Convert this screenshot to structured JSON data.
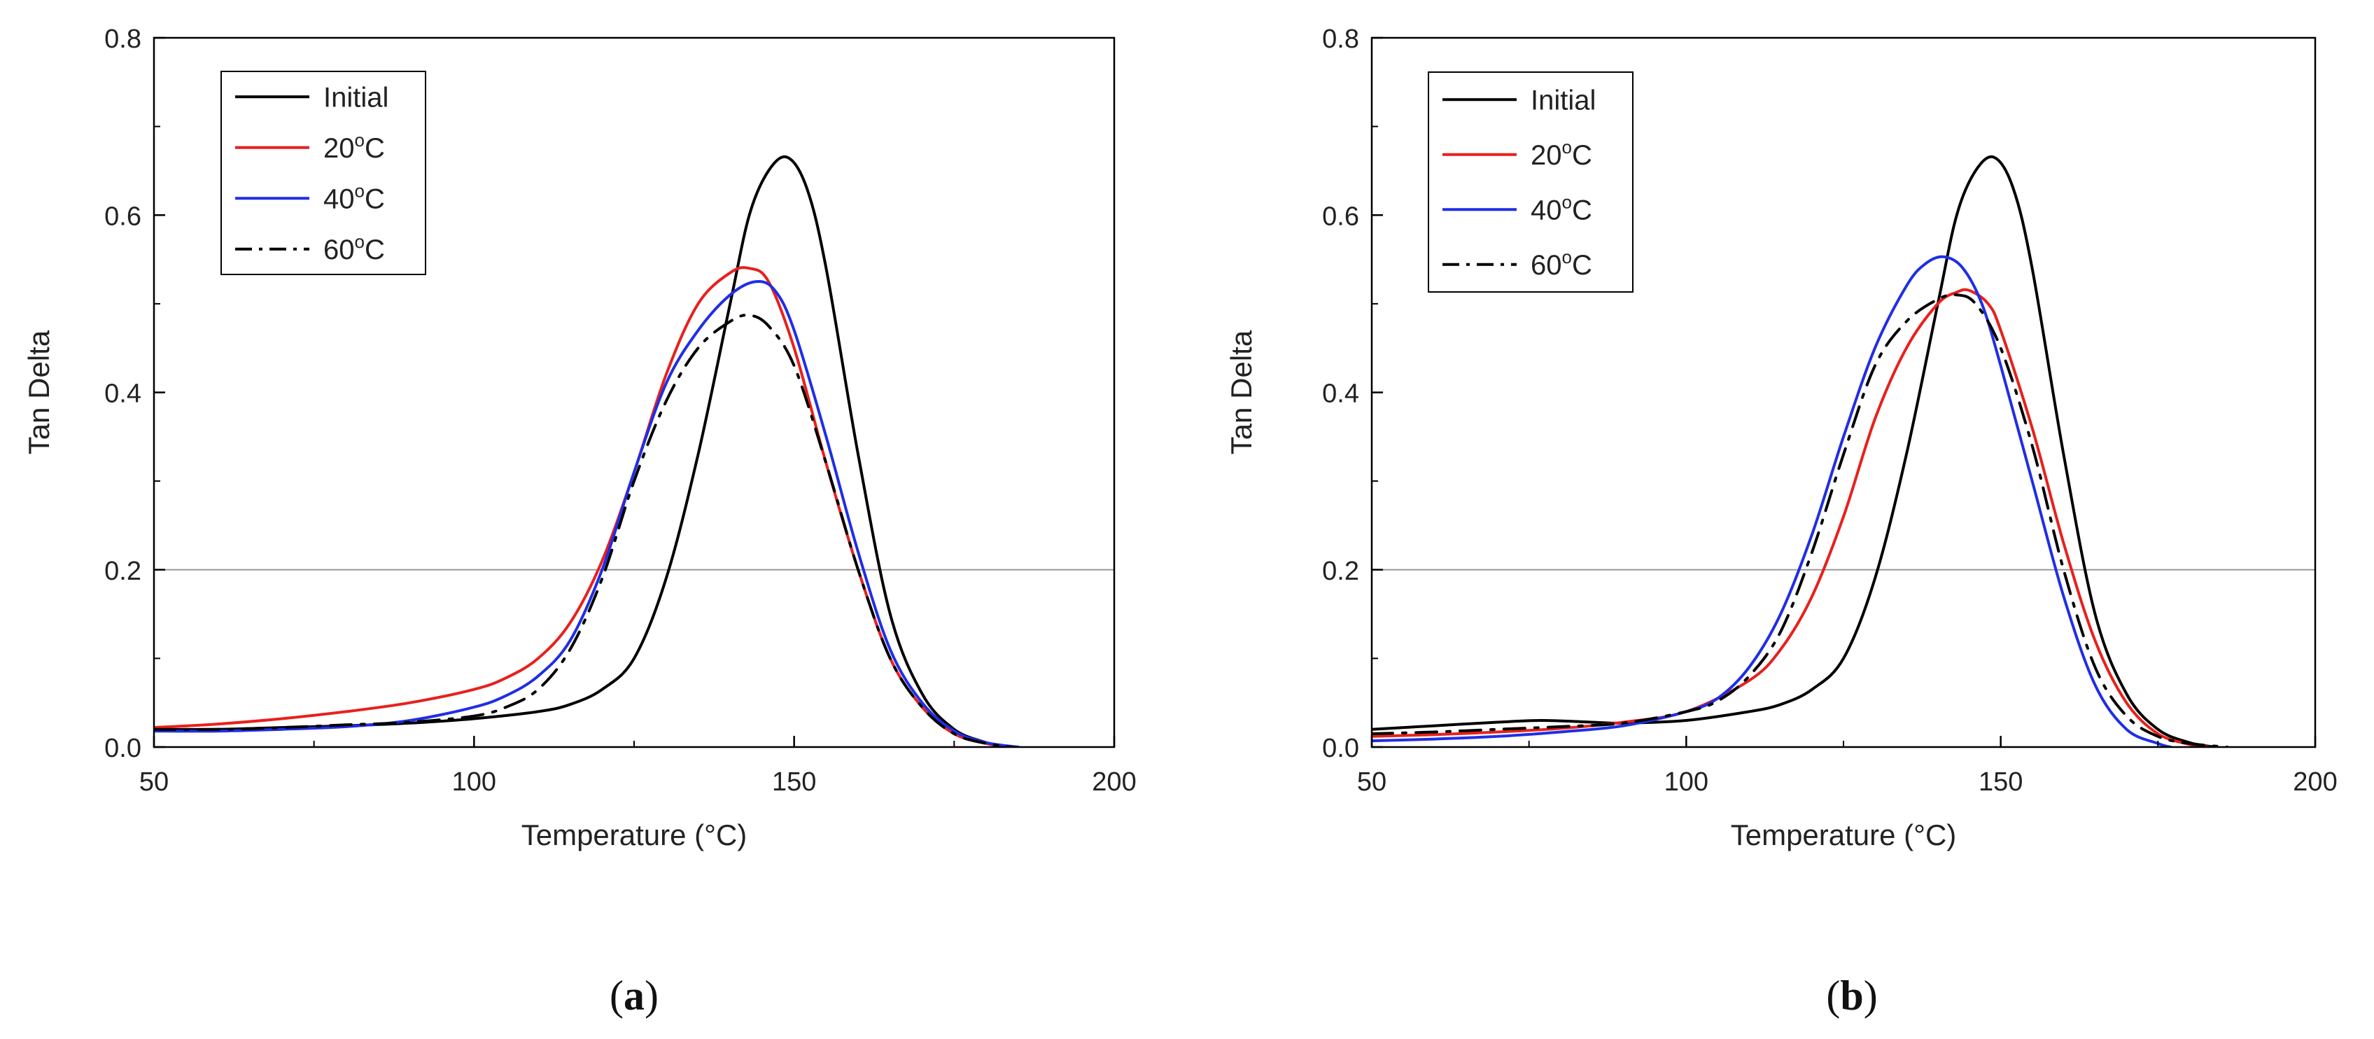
{
  "figure": {
    "panels": [
      "a",
      "b"
    ]
  },
  "colors": {
    "initial": "#000000",
    "c20": "#e8201c",
    "c40": "#1f2ee6",
    "c60": "#000000",
    "gridline": "#9a9a9a",
    "axis": "#000000"
  },
  "chart_data": [
    {
      "type": "line",
      "panel_label": "a",
      "title": "",
      "xlabel": "Temperature (°C)",
      "ylabel": "Tan Delta",
      "xlim": [
        50,
        200
      ],
      "ylim": [
        0,
        0.8
      ],
      "xticks": [
        50,
        100,
        150,
        200
      ],
      "xtick_labels": [
        "50",
        "100",
        "150",
        "200"
      ],
      "yticks": [
        0.0,
        0.2,
        0.4,
        0.6,
        0.8
      ],
      "ytick_labels": [
        "0.0",
        "0.2",
        "0.4",
        "0.6",
        "0.8"
      ],
      "reference_line_y": 0.2,
      "legend_position": "top-left",
      "series": [
        {
          "name": "Initial",
          "name_main": "Initial",
          "name_sup": "",
          "name_tail": "",
          "color_key": "initial",
          "dash": "solid",
          "x": [
            50,
            60,
            70,
            80,
            90,
            100,
            110,
            115,
            120,
            125,
            130,
            135,
            140,
            143,
            146,
            149,
            152,
            155,
            160,
            165,
            170,
            175,
            180,
            183
          ],
          "y": [
            0.02,
            0.02,
            0.022,
            0.024,
            0.027,
            0.032,
            0.04,
            0.048,
            0.065,
            0.1,
            0.19,
            0.33,
            0.5,
            0.6,
            0.65,
            0.665,
            0.63,
            0.54,
            0.33,
            0.15,
            0.06,
            0.02,
            0.005,
            0.0
          ]
        },
        {
          "name": "20°C",
          "name_main": "20",
          "name_sup": "o",
          "name_tail": "C",
          "color_key": "c20",
          "dash": "solid",
          "x": [
            50,
            60,
            70,
            80,
            90,
            100,
            105,
            110,
            115,
            120,
            125,
            130,
            135,
            140,
            143,
            146,
            150,
            155,
            160,
            165,
            170,
            175,
            180,
            184
          ],
          "y": [
            0.022,
            0.026,
            0.032,
            0.04,
            0.05,
            0.065,
            0.078,
            0.1,
            0.14,
            0.21,
            0.31,
            0.42,
            0.5,
            0.535,
            0.54,
            0.525,
            0.45,
            0.32,
            0.2,
            0.1,
            0.045,
            0.015,
            0.004,
            0.0
          ]
        },
        {
          "name": "40°C",
          "name_main": "40",
          "name_sup": "o",
          "name_tail": "C",
          "color_key": "c40",
          "dash": "solid",
          "x": [
            50,
            60,
            70,
            80,
            90,
            100,
            105,
            110,
            115,
            120,
            125,
            130,
            135,
            140,
            144,
            147,
            150,
            155,
            160,
            165,
            170,
            175,
            180,
            185
          ],
          "y": [
            0.018,
            0.018,
            0.02,
            0.023,
            0.03,
            0.045,
            0.058,
            0.08,
            0.12,
            0.2,
            0.31,
            0.41,
            0.47,
            0.51,
            0.525,
            0.515,
            0.47,
            0.35,
            0.22,
            0.11,
            0.05,
            0.018,
            0.005,
            0.0
          ]
        },
        {
          "name": "60°C",
          "name_main": "60",
          "name_sup": "o",
          "name_tail": "C",
          "color_key": "c60",
          "dash": "dashdot",
          "x": [
            50,
            60,
            70,
            80,
            90,
            100,
            105,
            110,
            115,
            120,
            125,
            130,
            135,
            140,
            143,
            146,
            150,
            155,
            160,
            165,
            170,
            175,
            180,
            184
          ],
          "y": [
            0.02,
            0.02,
            0.022,
            0.025,
            0.028,
            0.035,
            0.045,
            0.065,
            0.11,
            0.19,
            0.3,
            0.39,
            0.45,
            0.48,
            0.487,
            0.475,
            0.43,
            0.32,
            0.2,
            0.1,
            0.045,
            0.015,
            0.004,
            0.0
          ]
        }
      ]
    },
    {
      "type": "line",
      "panel_label": "b",
      "title": "",
      "xlabel": "Temperature (°C)",
      "ylabel": "Tan Delta",
      "xlim": [
        50,
        200
      ],
      "ylim": [
        0,
        0.8
      ],
      "xticks": [
        50,
        100,
        150,
        200
      ],
      "xtick_labels": [
        "50",
        "100",
        "150",
        "200"
      ],
      "yticks": [
        0.0,
        0.2,
        0.4,
        0.6,
        0.8
      ],
      "ytick_labels": [
        "0.0",
        "0.2",
        "0.4",
        "0.6",
        "0.8"
      ],
      "reference_line_y": 0.2,
      "legend_position": "top-left",
      "series": [
        {
          "name": "Initial",
          "name_main": "Initial",
          "name_sup": "",
          "name_tail": "",
          "color_key": "initial",
          "dash": "solid",
          "x": [
            50,
            60,
            70,
            77,
            85,
            90,
            100,
            110,
            115,
            120,
            125,
            130,
            135,
            140,
            143,
            146,
            149,
            152,
            155,
            160,
            165,
            170,
            175,
            180,
            184
          ],
          "y": [
            0.02,
            0.024,
            0.028,
            0.03,
            0.028,
            0.027,
            0.03,
            0.04,
            0.048,
            0.065,
            0.1,
            0.19,
            0.33,
            0.5,
            0.6,
            0.65,
            0.665,
            0.63,
            0.54,
            0.33,
            0.15,
            0.06,
            0.02,
            0.005,
            0.0
          ]
        },
        {
          "name": "20°C",
          "name_main": "20",
          "name_sup": "o",
          "name_tail": "C",
          "color_key": "c20",
          "dash": "solid",
          "x": [
            50,
            60,
            70,
            80,
            90,
            100,
            110,
            115,
            120,
            125,
            130,
            135,
            140,
            143,
            145,
            148,
            150,
            155,
            160,
            165,
            170,
            175,
            180,
            183
          ],
          "y": [
            0.012,
            0.014,
            0.017,
            0.021,
            0.028,
            0.04,
            0.075,
            0.11,
            0.17,
            0.26,
            0.37,
            0.45,
            0.5,
            0.513,
            0.515,
            0.5,
            0.47,
            0.36,
            0.23,
            0.12,
            0.05,
            0.015,
            0.003,
            0.0
          ]
        },
        {
          "name": "40°C",
          "name_main": "40",
          "name_sup": "o",
          "name_tail": "C",
          "color_key": "c40",
          "dash": "solid",
          "x": [
            50,
            60,
            70,
            80,
            90,
            100,
            105,
            110,
            115,
            120,
            125,
            130,
            135,
            138,
            141,
            144,
            147,
            150,
            155,
            160,
            165,
            170,
            175,
            177
          ],
          "y": [
            0.007,
            0.009,
            0.012,
            0.017,
            0.024,
            0.04,
            0.055,
            0.09,
            0.15,
            0.24,
            0.35,
            0.45,
            0.52,
            0.545,
            0.553,
            0.54,
            0.5,
            0.43,
            0.3,
            0.17,
            0.07,
            0.02,
            0.004,
            0.0
          ]
        },
        {
          "name": "60°C",
          "name_main": "60",
          "name_sup": "o",
          "name_tail": "C",
          "color_key": "c60",
          "dash": "dashdot",
          "x": [
            50,
            60,
            70,
            80,
            90,
            100,
            105,
            110,
            115,
            120,
            125,
            130,
            135,
            140,
            143,
            146,
            150,
            155,
            160,
            165,
            170,
            175,
            180,
            186
          ],
          "y": [
            0.015,
            0.017,
            0.02,
            0.023,
            0.027,
            0.04,
            0.052,
            0.08,
            0.13,
            0.22,
            0.33,
            0.43,
            0.48,
            0.505,
            0.51,
            0.5,
            0.45,
            0.34,
            0.2,
            0.09,
            0.035,
            0.012,
            0.004,
            0.0
          ]
        }
      ]
    }
  ]
}
